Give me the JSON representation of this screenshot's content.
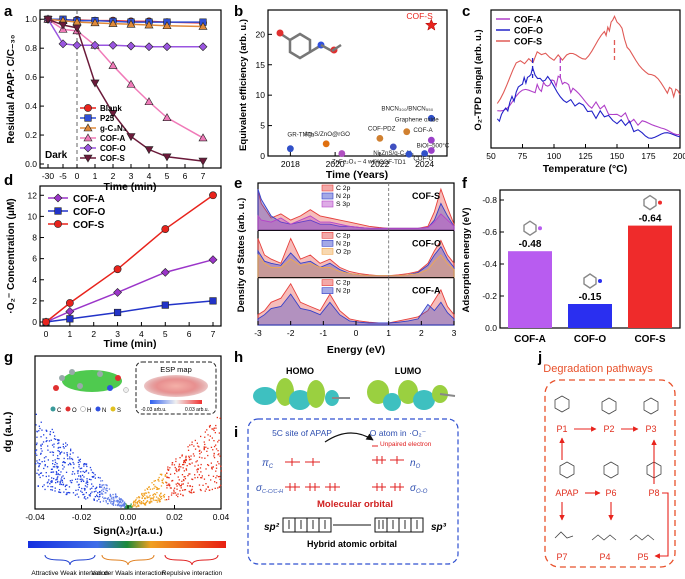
{
  "panels": {
    "a": {
      "letter": "a",
      "ylabel": "Residual APAP: C/C₋₃₀",
      "xlabel": "Time (min)",
      "dark_label": "Dark",
      "x_tick_labels": [
        "-30",
        "-5",
        "0",
        "1",
        "2",
        "3",
        "4",
        "5",
        "6",
        "7"
      ],
      "y_tick_labels": [
        "0.0",
        "0.2",
        "0.4",
        "0.6",
        "0.8",
        "1.0"
      ],
      "legend": [
        "Blank",
        "P25",
        "g-C₃N₄",
        "COF-A",
        "COF-O",
        "COF-S"
      ]
    },
    "b": {
      "letter": "b",
      "ylabel": "Equivalent efficiency (arb. u.)",
      "xlabel": "Time (Years)",
      "x_tick_labels": [
        "2018",
        "2020",
        "2022",
        "2024"
      ],
      "y_tick_labels": [
        "0",
        "5",
        "10",
        "15",
        "20"
      ],
      "annotations": [
        "COF-S",
        "BNCN₃₀₀/BNCN₅₅₀",
        "Graphene oxide",
        "COF-PDZ",
        "COF-A",
        "Ag₂S/ZnO@rGO",
        "Ni-ZnS/g-C₃N₄",
        "GR-TNTh",
        "ZnFe₂O₄ – 4 wt%",
        "COF-TD1",
        "BiOI–500°C",
        "COF-O"
      ]
    },
    "c": {
      "letter": "c",
      "ylabel": "O₂-TPD singal (arb. u.)",
      "xlabel": "Temperature (°C)",
      "x_tick_labels": [
        "50",
        "75",
        "100",
        "125",
        "150",
        "175",
        "200"
      ],
      "legend": [
        "COF-A",
        "COF-O",
        "COF-S"
      ]
    },
    "d": {
      "letter": "d",
      "ylabel": "·O₂⁻ Concentration (μM)",
      "xlabel": "Time (min)",
      "x_tick_labels": [
        "0",
        "1",
        "2",
        "3",
        "4",
        "5",
        "6",
        "7"
      ],
      "y_tick_labels": [
        "0",
        "2",
        "4",
        "6",
        "8",
        "10",
        "12"
      ],
      "legend": [
        "COF-A",
        "COF-O",
        "COF-S"
      ]
    },
    "e": {
      "letter": "e",
      "ylabel": "Density of States (arb. u.)",
      "xlabel": "Energy (eV)",
      "x_tick_labels": [
        "-3",
        "-2",
        "-1",
        "0",
        "1",
        "2",
        "3"
      ],
      "subpanels": [
        {
          "name": "COF-S",
          "legend": [
            "C 2p",
            "N 2p",
            "S 3p"
          ]
        },
        {
          "name": "COF-O",
          "legend": [
            "C 2p",
            "N 2p",
            "O 2p"
          ]
        },
        {
          "name": "COF-A",
          "legend": [
            "C 2p",
            "N 2p"
          ]
        }
      ]
    },
    "f": {
      "letter": "f",
      "ylabel": "Adsorption energy (eV)",
      "y_tick_labels": [
        "0.0",
        "-0.2",
        "-0.4",
        "-0.6",
        "-0.8"
      ]
    },
    "g": {
      "letter": "g",
      "ylabel": "dg (a.u.)",
      "xlabel": "Sign(λ₂)r(a.u.)",
      "x_tick_labels": [
        "-0.04",
        "-0.02",
        "0.00",
        "0.02",
        "0.04"
      ],
      "esp_title": "ESP map",
      "esp_low": "-0.03 arb.u.",
      "esp_high": "0.03 arb.u.",
      "atom_legend": [
        "C",
        "O",
        "H",
        "N",
        "S"
      ],
      "interactions": [
        "Attractive Weak interaction",
        "Van der Waals interaction",
        "Repulsive interaction"
      ]
    },
    "h": {
      "letter": "h",
      "homo": "HOMO",
      "lumo": "LUMO"
    },
    "i": {
      "letter": "i",
      "left_title": "5C site of APAP",
      "right_title": "O atom in ·O₂⁻",
      "unpaired": "Unpaired electron",
      "pi_c": "π",
      "pi_c_sub": "C",
      "sigma_c": "σ",
      "sigma_c_sub": "C-C/C-H",
      "n_o": "n",
      "n_o_sub": "O",
      "sigma_o": "σ",
      "sigma_o_sub": "O-O",
      "molecular_orbital": "Molecular orbital",
      "hybrid": "Hybrid atomic orbital",
      "sp2": "sp²",
      "sp3": "sp³"
    },
    "j": {
      "letter": "j",
      "title": "Degradation pathways",
      "nodes": [
        "P1",
        "P2",
        "P3",
        "APAP",
        "P6",
        "P8",
        "P7",
        "P4",
        "P5"
      ]
    }
  },
  "chart_data": [
    {
      "panel": "a",
      "type": "line",
      "title": "",
      "xlabel": "Time (min)",
      "ylabel": "Residual APAP: C/C₋₃₀",
      "x": [
        -30,
        -5,
        0,
        1,
        2,
        3,
        4,
        5,
        7
      ],
      "ylim": [
        0,
        1.05
      ],
      "series": [
        {
          "name": "Blank",
          "color": "#e8231c",
          "values": [
            1.0,
            0.995,
            0.995,
            0.99,
            0.99,
            0.985,
            0.985,
            0.98,
            0.975
          ]
        },
        {
          "name": "P25",
          "color": "#2f4fd6",
          "values": [
            1.0,
            1.0,
            0.99,
            0.99,
            0.985,
            0.98,
            0.98,
            0.98,
            0.98
          ]
        },
        {
          "name": "g-C₃N₄",
          "color": "#e08a3a",
          "values": [
            1.0,
            0.99,
            0.98,
            0.975,
            0.97,
            0.965,
            0.96,
            0.955,
            0.95
          ]
        },
        {
          "name": "COF-A",
          "color": "#f07ab8",
          "values": [
            1.0,
            0.93,
            0.92,
            0.82,
            0.68,
            0.55,
            0.43,
            0.32,
            0.18
          ]
        },
        {
          "name": "COF-O",
          "color": "#9a55e0",
          "values": [
            1.0,
            0.83,
            0.82,
            0.82,
            0.82,
            0.815,
            0.81,
            0.81,
            0.81
          ]
        },
        {
          "name": "COF-S",
          "color": "#6b1a3a",
          "values": [
            1.0,
            0.96,
            0.94,
            0.56,
            0.35,
            0.19,
            0.1,
            0.05,
            0.02
          ]
        }
      ]
    },
    {
      "panel": "b",
      "type": "scatter",
      "xlabel": "Time (Years)",
      "ylabel": "Equivalent efficiency (arb. u.)",
      "xlim": [
        2017,
        2025
      ],
      "ylim": [
        0,
        24
      ],
      "points": [
        {
          "label": "COF-S",
          "x": 2024.3,
          "y": 21.5
        },
        {
          "label": "BNCN₃₀₀/BNCN₅₅₀",
          "x": 2024.3,
          "y": 6.2
        },
        {
          "label": "Graphene oxide",
          "x": 2023.2,
          "y": 4.0
        },
        {
          "label": "COF-PDZ",
          "x": 2022.0,
          "y": 2.9
        },
        {
          "label": "COF-A",
          "x": 2024.3,
          "y": 2.6
        },
        {
          "label": "Ag₂S/ZnO@rGO",
          "x": 2019.6,
          "y": 2.0
        },
        {
          "label": "Ni-ZnS/g-C₃N₄",
          "x": 2022.6,
          "y": 1.5
        },
        {
          "label": "GR-TNTh",
          "x": 2018.0,
          "y": 1.2
        },
        {
          "label": "ZnFe₂O₄ – 4 wt%",
          "x": 2020.3,
          "y": 0.4
        },
        {
          "label": "COF-TD1",
          "x": 2023.3,
          "y": 0.3
        },
        {
          "label": "BiOI–500°C",
          "x": 2024.0,
          "y": 0.4
        },
        {
          "label": "COF-O",
          "x": 2024.3,
          "y": 0.9
        }
      ]
    },
    {
      "panel": "c",
      "type": "line",
      "xlabel": "Temperature (°C)",
      "ylabel": "O₂-TPD singal (arb. u.)",
      "xlim": [
        50,
        200
      ],
      "peaks": [
        {
          "series": "COF-O",
          "x": 83
        },
        {
          "series": "COF-A",
          "x": 105
        },
        {
          "series": "COF-S",
          "x": 148
        }
      ],
      "series": [
        {
          "name": "COF-A",
          "color": "#b03fc8",
          "x": [
            55,
            70,
            85,
            95,
            105,
            115,
            130,
            150,
            170,
            185,
            200
          ],
          "values": [
            0.28,
            0.36,
            0.42,
            0.46,
            0.5,
            0.42,
            0.32,
            0.24,
            0.18,
            0.14,
            0.12
          ]
        },
        {
          "name": "COF-O",
          "color": "#2222c8",
          "x": [
            55,
            65,
            75,
            83,
            95,
            110,
            130,
            150,
            170,
            185,
            200
          ],
          "values": [
            0.2,
            0.32,
            0.48,
            0.55,
            0.48,
            0.36,
            0.26,
            0.2,
            0.12,
            0.09,
            0.08
          ]
        },
        {
          "name": "COF-S",
          "color": "#e05a56",
          "x": [
            55,
            70,
            90,
            110,
            125,
            140,
            148,
            160,
            175,
            190,
            200
          ],
          "values": [
            0.35,
            0.6,
            0.68,
            0.64,
            0.68,
            0.82,
            0.95,
            0.72,
            0.52,
            0.42,
            0.4
          ]
        }
      ]
    },
    {
      "panel": "d",
      "type": "line",
      "xlabel": "Time (min)",
      "ylabel": "·O₂⁻ Concentration (μM)",
      "x": [
        0,
        1,
        3,
        5,
        7
      ],
      "ylim": [
        0,
        12.5
      ],
      "series": [
        {
          "name": "COF-A",
          "color": "#9b35c9",
          "values": [
            0,
            1.0,
            2.8,
            4.7,
            5.9
          ]
        },
        {
          "name": "COF-O",
          "color": "#2233c8",
          "values": [
            0,
            0.3,
            0.9,
            1.6,
            2.0
          ]
        },
        {
          "name": "COF-S",
          "color": "#e8231c",
          "values": [
            0,
            1.8,
            5.0,
            8.8,
            12.0
          ]
        }
      ]
    },
    {
      "panel": "e",
      "type": "area",
      "xlabel": "Energy (eV)",
      "ylabel": "Density of States (arb. u.)",
      "xlim": [
        -3,
        3
      ],
      "fermi_line": 1.0,
      "panels": [
        {
          "name": "COF-S",
          "x": [
            -3,
            -2.9,
            -2.6,
            -2.3,
            -2.0,
            -1.7,
            -1.4,
            -1.1,
            -0.8,
            -0.5,
            -0.2,
            0.1,
            0.4,
            0.7,
            1.0,
            1.3,
            1.6,
            1.9,
            2.2,
            2.4,
            2.6,
            2.8,
            3.0
          ],
          "series": [
            {
              "name": "C 2p",
              "color": "#e6413d",
              "values": [
                0.9,
                0.6,
                0.25,
                0.35,
                0.2,
                0.3,
                0.45,
                0.3,
                0.25,
                0.2,
                0.15,
                0.1,
                0.05,
                0.02,
                0,
                0,
                0,
                0,
                0.05,
                0.4,
                0.95,
                0.5,
                0.1
              ]
            },
            {
              "name": "N 2p",
              "color": "#3540c8",
              "values": [
                0.95,
                0.7,
                0.3,
                0.15,
                0.1,
                0.15,
                0.2,
                0.1,
                0.1,
                0.05,
                0.05,
                0.02,
                0,
                0,
                0,
                0,
                0,
                0,
                0.02,
                0.2,
                0.6,
                0.3,
                0.05
              ]
            },
            {
              "name": "S 3p",
              "color": "#b545c8",
              "values": [
                0.3,
                0.2,
                0.15,
                0.25,
                0.1,
                0.2,
                0.3,
                0.15,
                0.15,
                0.1,
                0.05,
                0.02,
                0,
                0,
                0,
                0,
                0,
                0,
                0.02,
                0.15,
                0.35,
                0.2,
                0.05
              ]
            }
          ]
        },
        {
          "name": "COF-O",
          "x": [
            -3,
            -2.8,
            -2.6,
            -2.3,
            -2.0,
            -1.7,
            -1.4,
            -1.1,
            -0.8,
            -0.5,
            -0.2,
            0.1,
            0.4,
            0.7,
            1.0,
            1.3,
            1.6,
            1.9,
            2.2,
            2.4,
            2.6,
            2.8,
            3.0
          ],
          "series": [
            {
              "name": "C 2p",
              "color": "#e6413d",
              "values": [
                0.9,
                0.5,
                0.4,
                0.3,
                0.9,
                0.4,
                0.5,
                0.3,
                0.4,
                0.2,
                0.1,
                0.05,
                0.02,
                0,
                0,
                0.02,
                0.05,
                0.1,
                0.3,
                0.6,
                0.85,
                0.5,
                0.3
              ]
            },
            {
              "name": "N 2p",
              "color": "#3540c8",
              "values": [
                0.6,
                0.35,
                0.3,
                0.25,
                0.55,
                0.3,
                0.35,
                0.2,
                0.3,
                0.15,
                0.05,
                0.02,
                0,
                0,
                0,
                0,
                0.02,
                0.08,
                0.25,
                0.5,
                0.7,
                0.4,
                0.2
              ]
            },
            {
              "name": "O 2p",
              "color": "#f0a850",
              "values": [
                0.5,
                0.3,
                0.2,
                0.2,
                0.4,
                0.25,
                0.3,
                0.2,
                0.2,
                0.1,
                0.05,
                0.02,
                0,
                0,
                0,
                0,
                0.02,
                0.05,
                0.15,
                0.35,
                0.5,
                0.3,
                0.15
              ]
            }
          ]
        },
        {
          "name": "COF-A",
          "x": [
            -3,
            -2.8,
            -2.6,
            -2.3,
            -2.0,
            -1.7,
            -1.4,
            -1.1,
            -0.8,
            -0.5,
            -0.2,
            0.1,
            0.4,
            0.7,
            1.0,
            1.3,
            1.6,
            1.9,
            2.2,
            2.4,
            2.6,
            2.8,
            3.0
          ],
          "series": [
            {
              "name": "C 2p",
              "color": "#e6413d",
              "values": [
                0.2,
                0.3,
                0.5,
                0.6,
                0.95,
                0.5,
                0.4,
                0.3,
                0.7,
                0.3,
                0.1,
                0.05,
                0.02,
                0,
                0,
                0.05,
                0.1,
                0.15,
                0.3,
                0.55,
                0.8,
                0.4,
                0.2
              ]
            },
            {
              "name": "N 2p",
              "color": "#3540c8",
              "values": [
                0.1,
                0.2,
                0.35,
                0.4,
                0.7,
                0.35,
                0.3,
                0.2,
                0.5,
                0.2,
                0.05,
                0.02,
                0,
                0,
                0,
                0.02,
                0.05,
                0.1,
                0.45,
                0.3,
                0.5,
                0.25,
                0.1
              ]
            }
          ]
        }
      ]
    },
    {
      "panel": "f",
      "type": "bar",
      "ylabel": "Adsorption energy (eV)",
      "categories": [
        "COF-A",
        "COF-O",
        "COF-S"
      ],
      "values": [
        -0.48,
        -0.15,
        -0.64
      ],
      "colors": [
        "#b85cf0",
        "#2a2ff0",
        "#ef2b2b"
      ],
      "ylim": [
        0,
        -0.8
      ]
    },
    {
      "panel": "g",
      "type": "scatter",
      "xlabel": "Sign(λ₂)r(a.u.)",
      "ylabel": "dg (a.u.)",
      "xlim": [
        -0.04,
        0.04
      ],
      "ylim": [
        0,
        1
      ],
      "description_points": "noninteraction scatter: dense band rising from center toward both edges"
    }
  ]
}
